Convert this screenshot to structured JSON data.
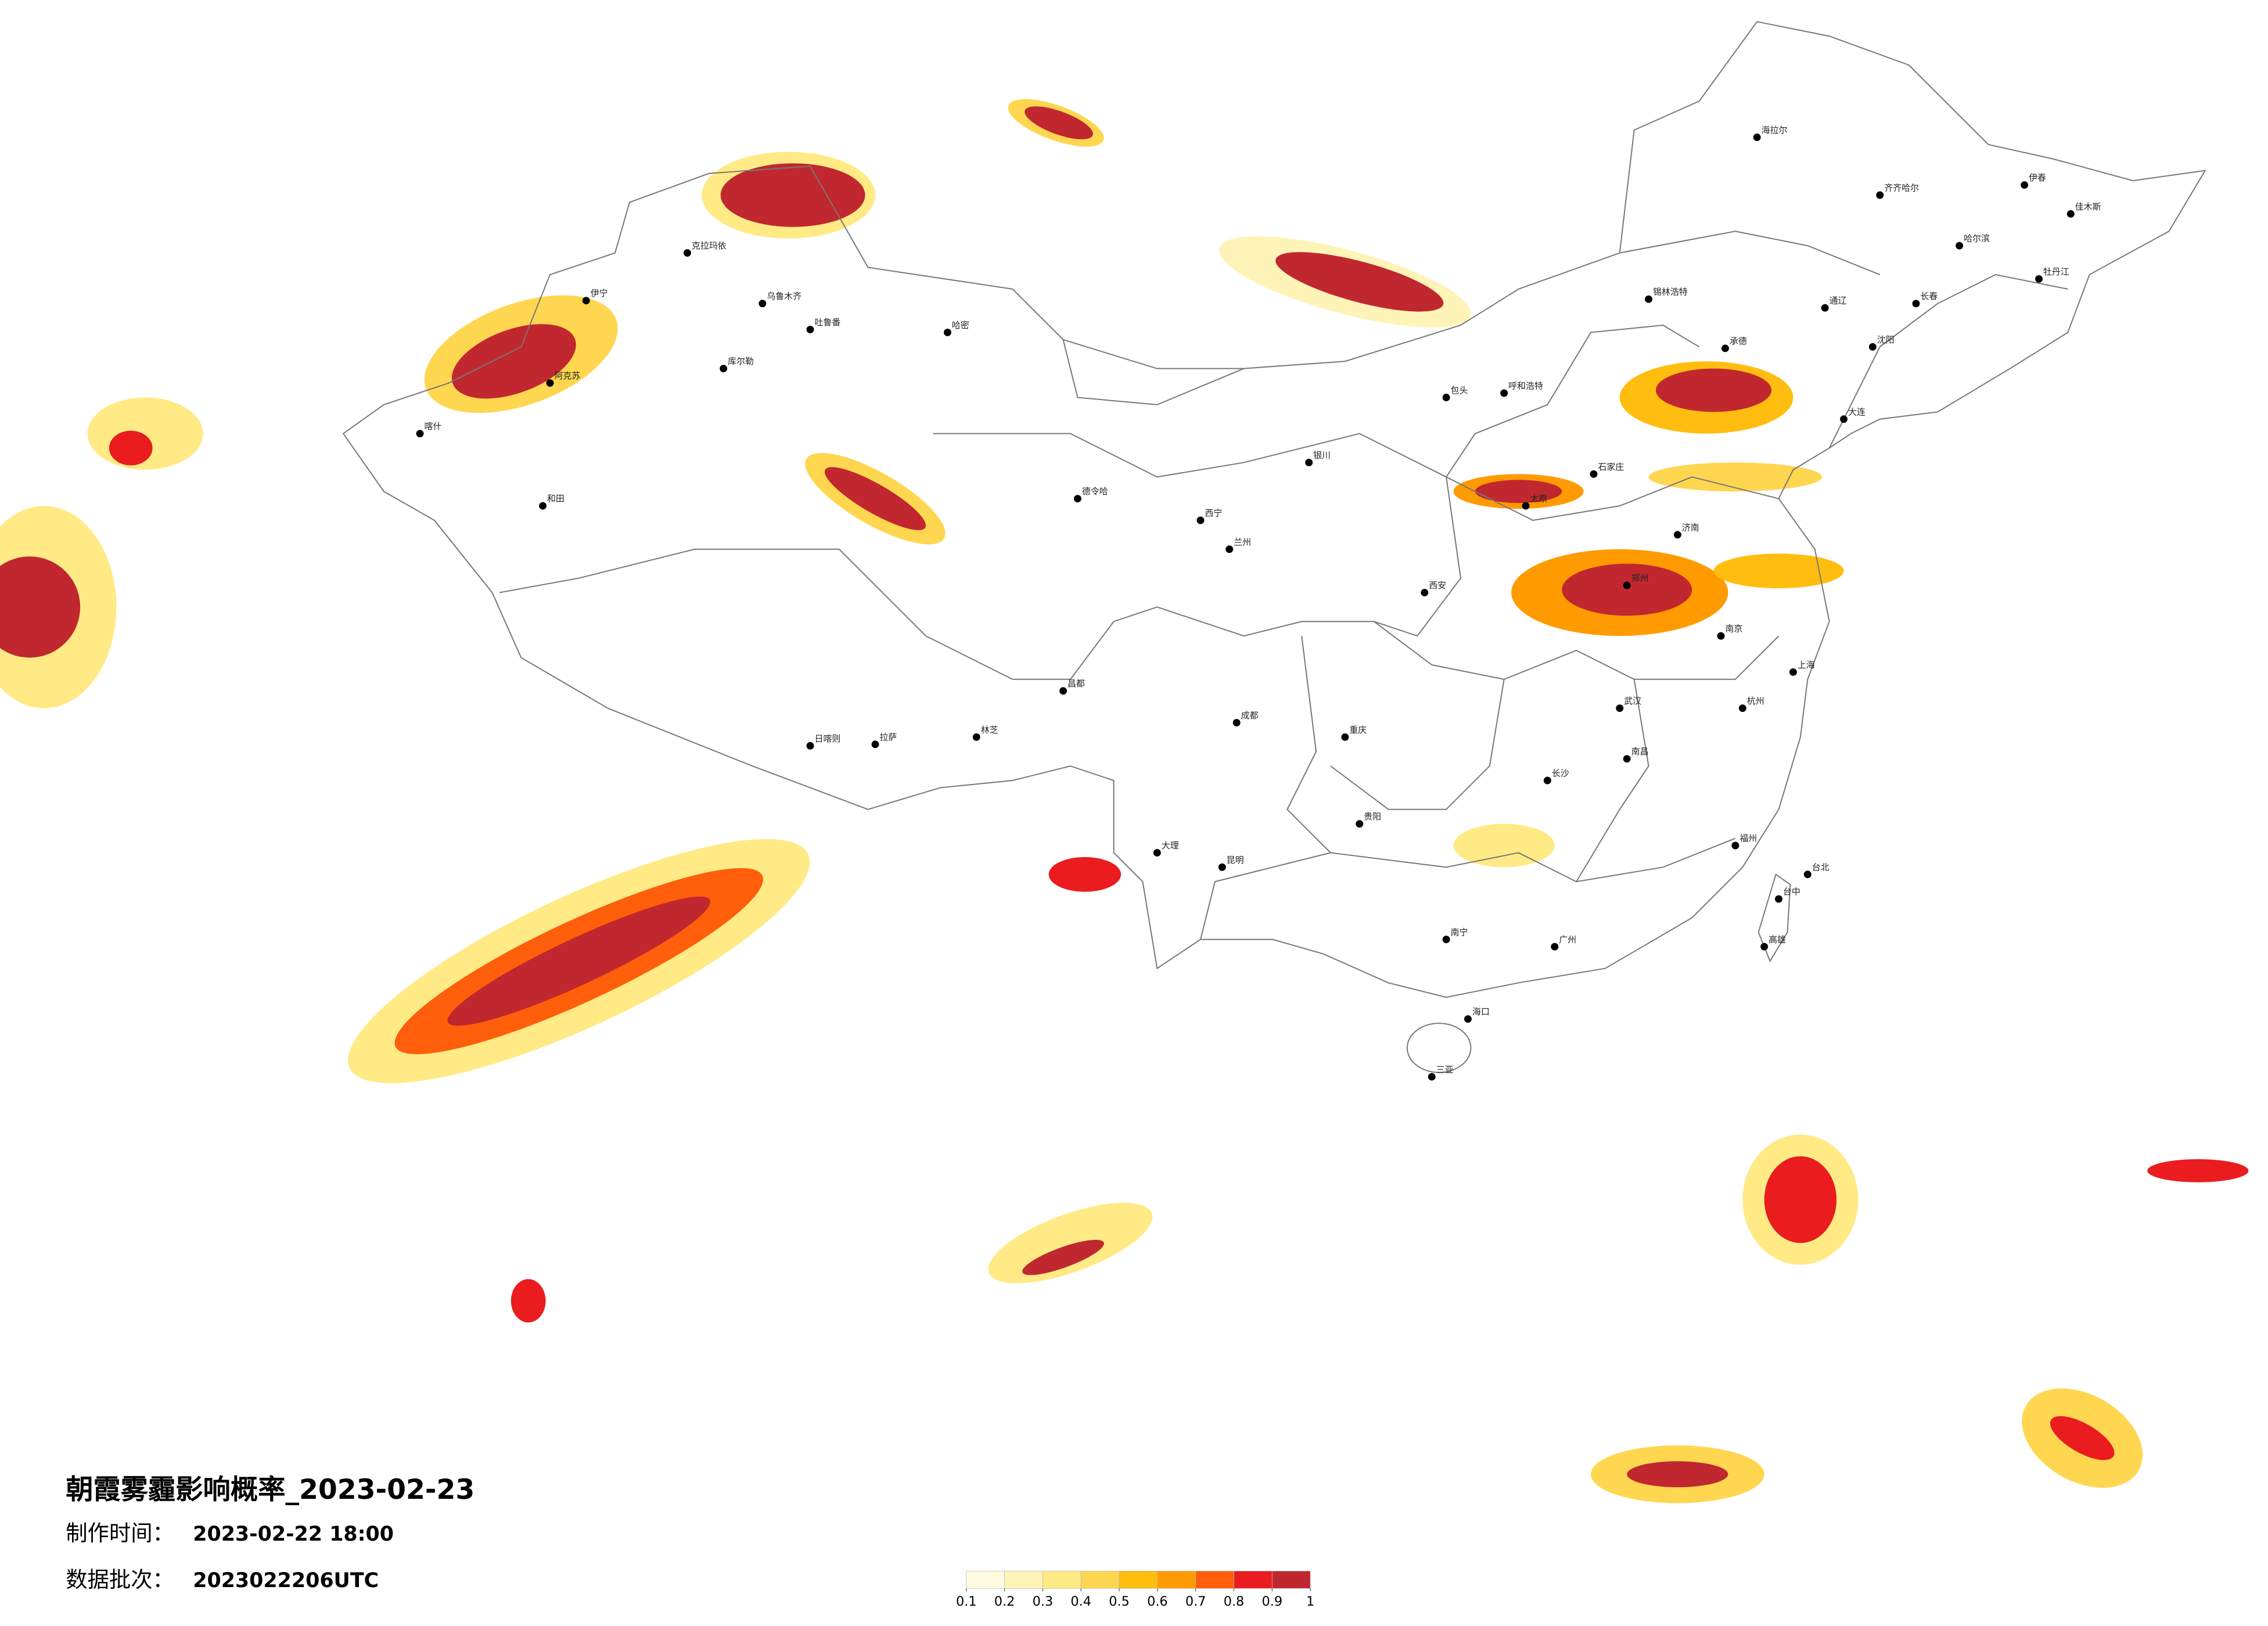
{
  "header": {
    "title": "朝霞雾霾影响概率_2023-02-23",
    "production_time_label": "制作时间：",
    "production_time": "2023-02-22 18:00",
    "batch_label": "数据批次：",
    "batch": "2023022206UTC"
  },
  "legend": {
    "ticks": [
      0.1,
      0.2,
      0.3,
      0.4,
      0.5,
      0.6,
      0.7,
      0.8,
      0.9,
      1
    ],
    "colors": [
      "#fffbe3",
      "#fff4b8",
      "#ffea85",
      "#ffd650",
      "#ffbd0f",
      "#ff9a00",
      "#ff5e0a",
      "#ea1c1f",
      "#c1272f"
    ]
  },
  "cities": [
    "乌鲁木齐",
    "克拉玛依",
    "伊宁",
    "哈密",
    "喀什",
    "和田",
    "库尔勒",
    "吐鲁番",
    "阿克苏",
    "德令哈",
    "拉萨",
    "日喀则",
    "林芝",
    "昌都",
    "西宁",
    "兰州",
    "银川",
    "呼和浩特",
    "包头",
    "锡林浩特",
    "承德",
    "石家庄",
    "太原",
    "济南",
    "郑州",
    "西安",
    "成都",
    "重庆",
    "贵阳",
    "昆明",
    "大理",
    "南宁",
    "广州",
    "长沙",
    "武汉",
    "南昌",
    "杭州",
    "南京",
    "上海",
    "福州",
    "台北",
    "台中",
    "高雄",
    "海口",
    "三亚",
    "哈尔滨",
    "长春",
    "沈阳",
    "大连",
    "齐齐哈尔",
    "海拉尔",
    "伊春",
    "佳木斯",
    "牡丹江",
    "通辽"
  ]
}
